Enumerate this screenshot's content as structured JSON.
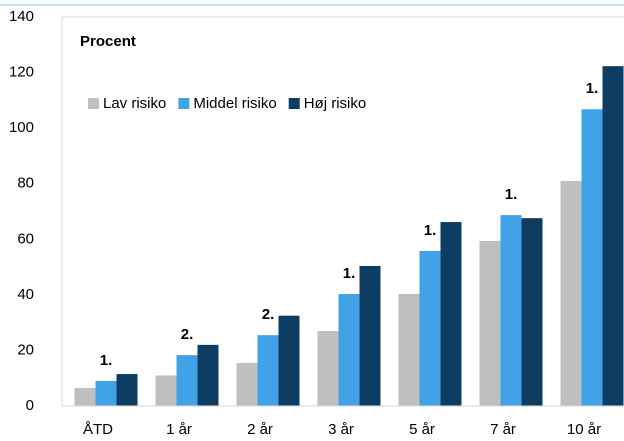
{
  "chart_data": {
    "type": "bar",
    "subtitle": "Procent",
    "categories": [
      "ÅTD",
      "1 år",
      "2 år",
      "3 år",
      "5 år",
      "7 år",
      "10 år"
    ],
    "series": [
      {
        "name": "Lav risiko",
        "color": "#bfbfbf",
        "values": [
          6.5,
          11,
          15.5,
          27,
          40.3,
          59.4,
          81
        ]
      },
      {
        "name": "Middel risiko",
        "color": "#42a2e8",
        "values": [
          9,
          18.3,
          25.5,
          40.3,
          55.8,
          68.7,
          106.8
        ]
      },
      {
        "name": "Høj risiko",
        "color": "#0d3d62",
        "values": [
          11.5,
          22,
          32.5,
          50.4,
          66.2,
          67.6,
          122.3
        ]
      }
    ],
    "annotations": [
      {
        "category": 0,
        "text": "1."
      },
      {
        "category": 1,
        "text": "2."
      },
      {
        "category": 2,
        "text": "2."
      },
      {
        "category": 3,
        "text": "1."
      },
      {
        "category": 4,
        "text": "1."
      },
      {
        "category": 5,
        "text": "1."
      },
      {
        "category": 6,
        "text": "1."
      }
    ],
    "ylim": [
      0,
      140
    ],
    "yticks": [
      0,
      20,
      40,
      60,
      80,
      100,
      120,
      140
    ],
    "legend": "top-left",
    "grid": false
  }
}
